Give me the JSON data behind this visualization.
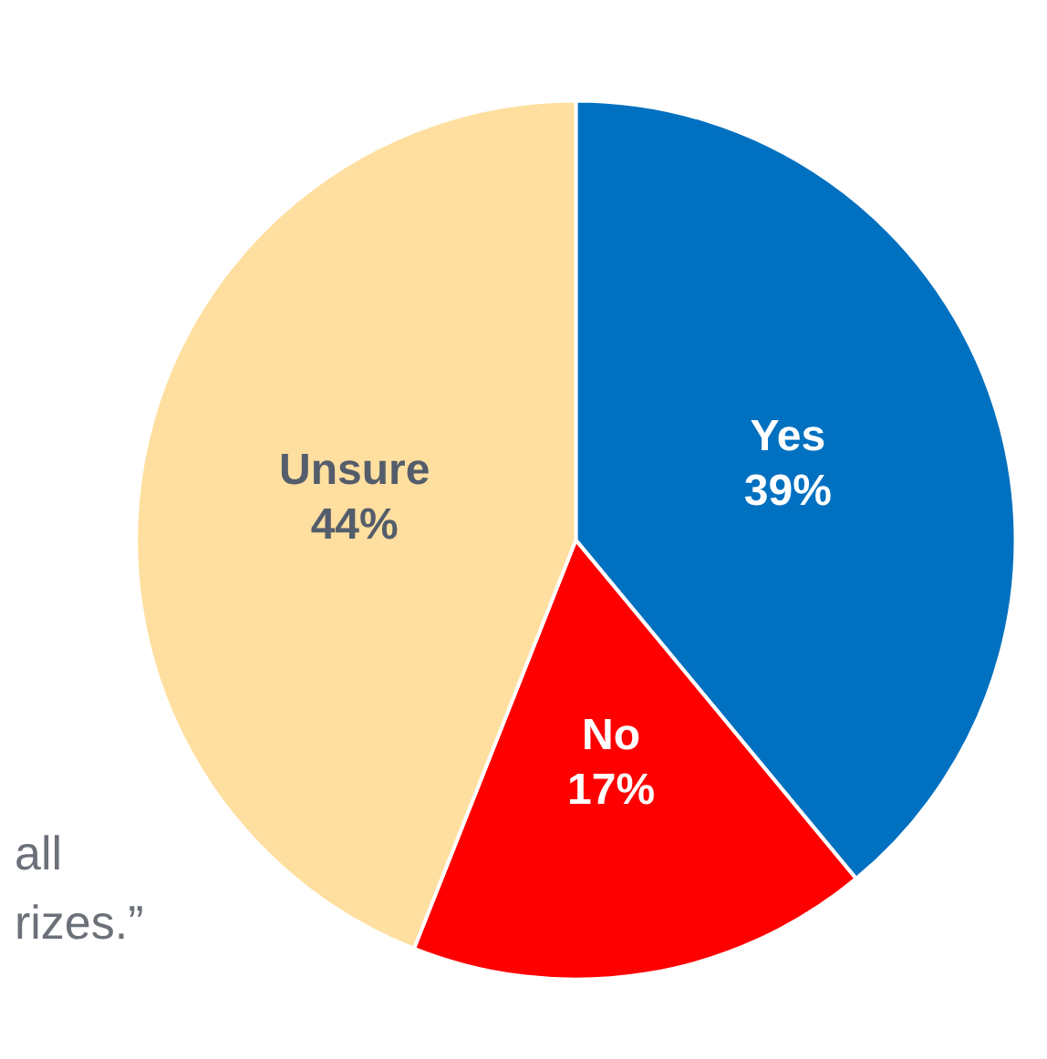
{
  "chart_data": {
    "type": "pie",
    "categories": [
      "Yes",
      "No",
      "Unsure"
    ],
    "values": [
      39,
      17,
      44
    ],
    "colors": [
      "#0070c0",
      "#ff0000",
      "#ffdf9f"
    ],
    "value_labels": [
      "39%",
      "17%",
      "44%"
    ],
    "legend": false,
    "annotations": [
      "all",
      "rizes.”"
    ]
  }
}
